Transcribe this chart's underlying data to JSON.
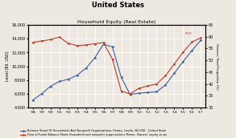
{
  "title": "United States",
  "subtitle": "Household Equity (Real Estate)",
  "background_color": "#ede8e0",
  "grid_color": "#ffffff",
  "ylabel_left": "Level (Bil. USD)",
  "ylabel_right": "Owners' Real Proportion (%)",
  "years": [
    "'98",
    "'99",
    "'00",
    "'01",
    "'02",
    "'03",
    "'04",
    "'05",
    "'06",
    "'07",
    "'08",
    "'09",
    "'10",
    "'11",
    "'12",
    "'13",
    "'14",
    "'15",
    "'16",
    "'17"
  ],
  "blue_data": [
    5100,
    6000,
    7100,
    7800,
    8100,
    8700,
    9700,
    11200,
    13200,
    12800,
    8400,
    5900,
    6100,
    6200,
    6300,
    7300,
    9000,
    10700,
    12300,
    13800
  ],
  "red_data_right": [
    57.5,
    58.2,
    58.8,
    59.8,
    57.2,
    56.2,
    56.5,
    57.0,
    57.5,
    50.5,
    37.0,
    35.8,
    38.2,
    39.2,
    40.0,
    43.5,
    48.5,
    53.5,
    57.8,
    59.5
  ],
  "blue_color": "#3a5fa0",
  "red_color": "#c0392b",
  "ylim_left": [
    4000,
    16000
  ],
  "ylim_right": [
    30,
    65
  ],
  "yticks_left": [
    4000,
    6000,
    8000,
    10000,
    12000,
    14000,
    16000
  ],
  "yticks_right": [
    30,
    35,
    40,
    45,
    50,
    55,
    60,
    65
  ],
  "legend_blue": "Balance Sheet Of Households And Nonprofit Organizations, Estate, Levels, Bil USD - United State",
  "legend_red": "Flow of Funds Balance Sheet Household and nonprofit organizations Memo: Owners' equity as pe",
  "annotation_text": "59.8",
  "figwidth": 2.93,
  "figheight": 1.72,
  "dpi": 100
}
